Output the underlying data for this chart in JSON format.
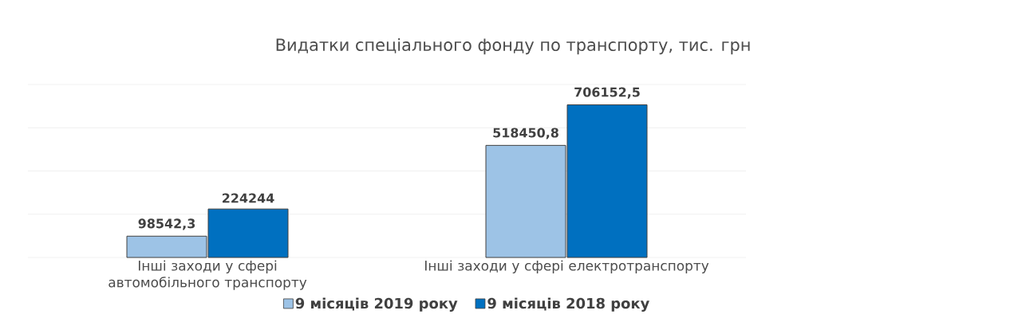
{
  "chart_data": {
    "type": "bar",
    "title": "Видатки спеціального фонду по транспорту, тис. грн",
    "categories": [
      "Інші заходи у сфері автомобільного транспорту",
      "Інші заходи у сфері електротранспорту"
    ],
    "series": [
      {
        "name": "9 місяців 2019 року",
        "color": "#9dc3e6",
        "values": [
          98542.3,
          518450.8
        ],
        "value_labels": [
          "98542,3",
          "518450,8"
        ]
      },
      {
        "name": "9 місяців  2018 року",
        "color": "#0070c0",
        "values": [
          224244,
          706152.5
        ],
        "value_labels": [
          "224244",
          "706152,5"
        ]
      }
    ],
    "ylim": [
      0,
      800000
    ],
    "yticks": [
      {
        "value": 0,
        "label": null
      },
      {
        "value": 200000,
        "label": null
      },
      {
        "value": 400000,
        "label": null
      },
      {
        "value": 600000,
        "label": null
      },
      {
        "value": 800000,
        "label": null
      }
    ],
    "tick_labels": "x",
    "grid": "y",
    "legend": "bottom"
  }
}
